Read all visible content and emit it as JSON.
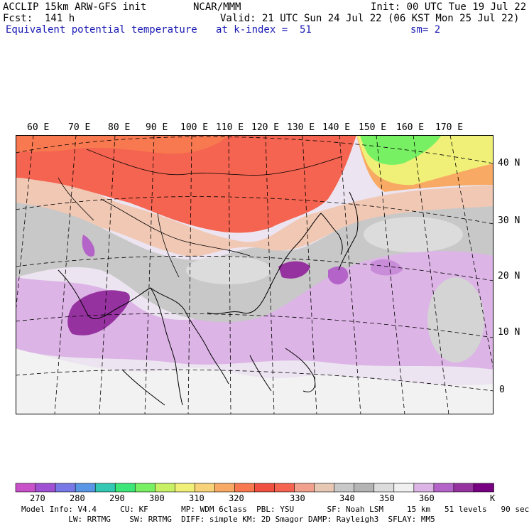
{
  "header": {
    "left_line1": "ACCLIP 15km ARW-GFS init",
    "center_line1": "NCAR/MMM",
    "right_line1": "Init: 00 UTC Tue 19 Jul 22",
    "left_line2": "Fcst:  141 h",
    "right_line2": "Valid: 21 UTC Sun 24 Jul 22 (06 KST Mon 25 Jul 22)",
    "left_line3": "Equivalent potential temperature",
    "center_line3": "at k-index =  51",
    "right_line3": "sm= 2"
  },
  "map": {
    "lon_labels": [
      "60 E",
      "70 E",
      "80 E",
      "90 E",
      "100 E",
      "110 E",
      "120 E",
      "130 E",
      "140 E",
      "150 E",
      "160 E",
      "170 E"
    ],
    "lat_labels": [
      "40 N",
      "30 N",
      "20 N",
      "10 N",
      "0"
    ]
  },
  "colorbar": {
    "unit": "K",
    "tick_labels": [
      "270",
      "280",
      "290",
      "300",
      "310",
      "320",
      "330",
      "340",
      "350",
      "360"
    ],
    "colors": [
      "#c850c8",
      "#a050d2",
      "#7878e6",
      "#5a96e6",
      "#32c8b4",
      "#3ce678",
      "#78f064",
      "#c8f064",
      "#f0f078",
      "#f8d278",
      "#f8aa64",
      "#f87850",
      "#f05040",
      "#f46450",
      "#f0a08c",
      "#e6c8b4",
      "#c8c8c8",
      "#b4b4b4",
      "#dcdcdc",
      "#f0f0f0",
      "#dcb4e6",
      "#b464c8",
      "#9632a0",
      "#780082"
    ]
  },
  "footer": {
    "line1": "Model Info: V4.4     CU: KF       MP: WDM 6class  PBL: YSU       SF: Noah LSM     15 km   51 levels   90 sec",
    "line2": "          LW: RRTMG    SW: RRTMG  DIFF: simple KM: 2D Smagor DAMP: Rayleigh3  SFLAY: MM5"
  }
}
